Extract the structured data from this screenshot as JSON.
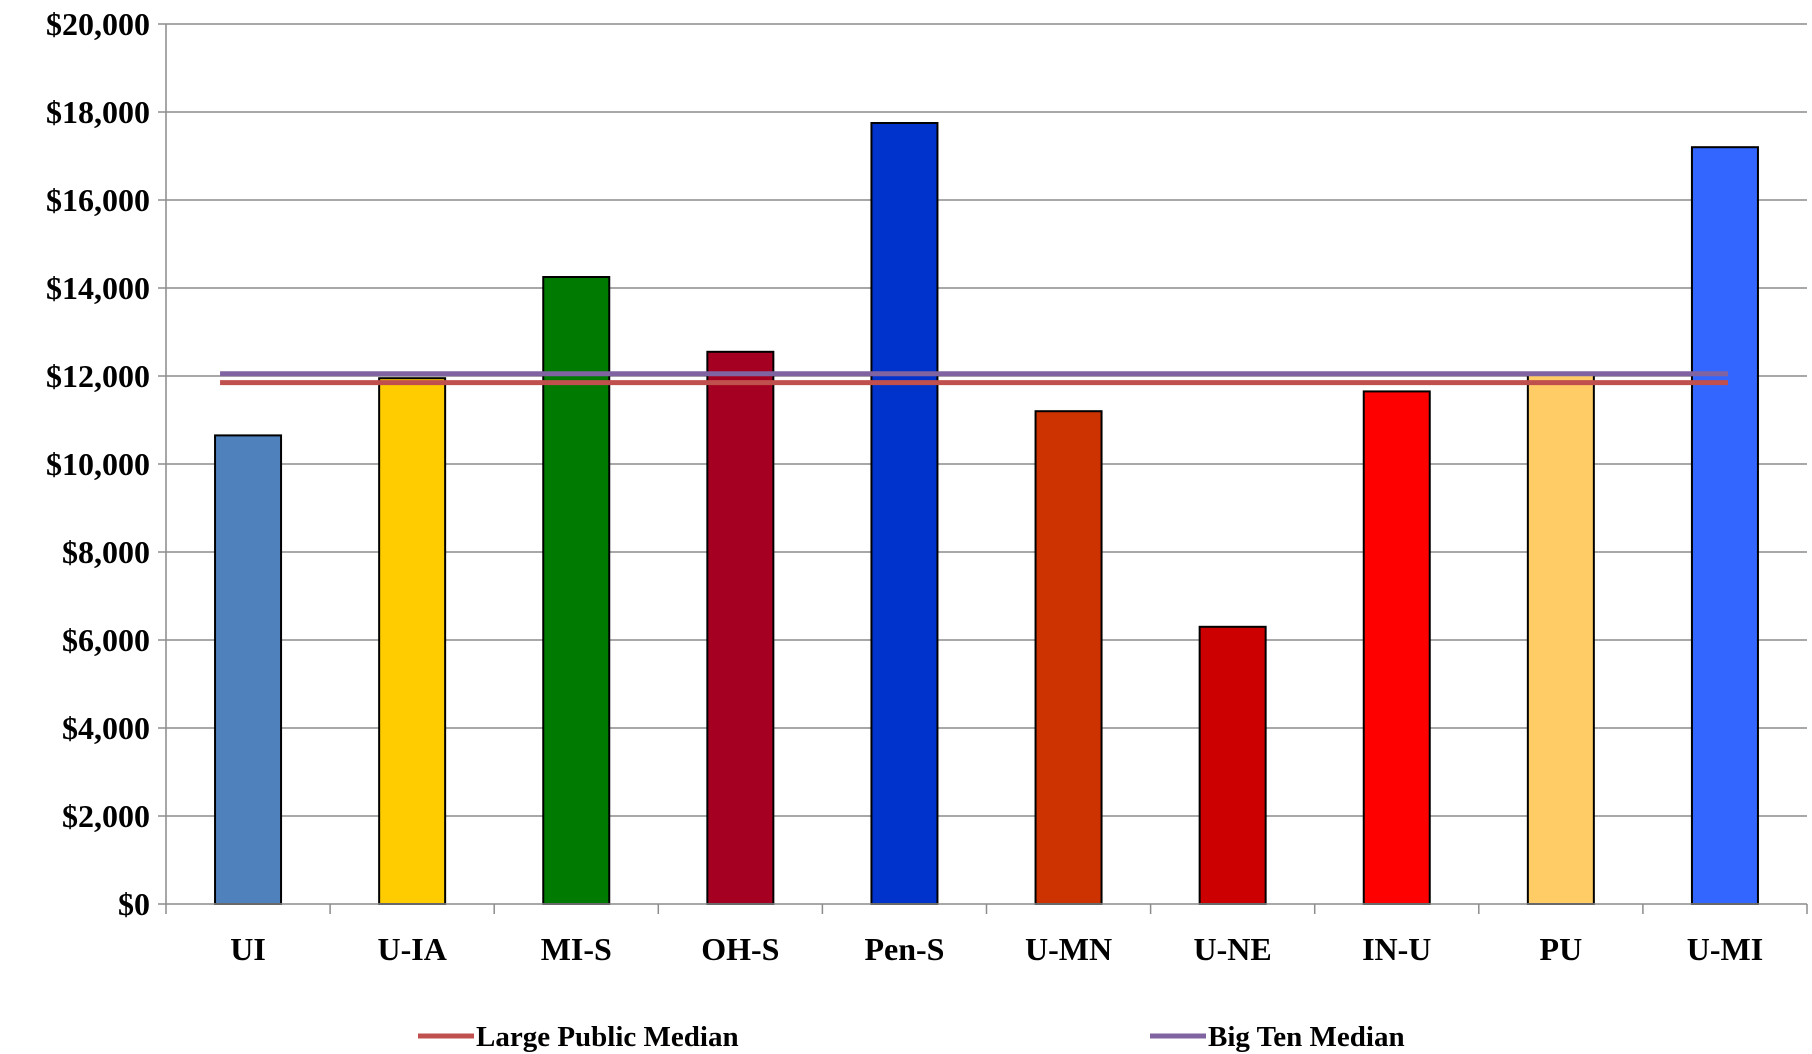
{
  "chart_data": {
    "type": "bar",
    "title": "",
    "xlabel": "",
    "ylabel": "",
    "categories": [
      "UI",
      "U-IA",
      "MI-S",
      "OH-S",
      "Pen-S",
      "U-MN",
      "U-NE",
      "IN-U",
      "PU",
      "U-MI"
    ],
    "values": [
      10650,
      11950,
      14250,
      12550,
      17750,
      11200,
      6300,
      11650,
      12050,
      17200
    ],
    "bar_colors": [
      "#4f81bd",
      "#ffcc00",
      "#007a00",
      "#a50021",
      "#0033cc",
      "#cc3300",
      "#cc0000",
      "#ff0000",
      "#ffcc66",
      "#3366ff"
    ],
    "ylim": [
      0,
      20000
    ],
    "yticks": [
      0,
      2000,
      4000,
      6000,
      8000,
      10000,
      12000,
      14000,
      16000,
      18000,
      20000
    ],
    "ytick_labels": [
      "$0",
      "$2,000",
      "$4,000",
      "$6,000",
      "$8,000",
      "$10,000",
      "$12,000",
      "$14,000",
      "$16,000",
      "$18,000",
      "$20,000"
    ],
    "grid": true,
    "legend_position": "bottom",
    "reference_lines": [
      {
        "name": "Large Public Median",
        "value": 11850,
        "color": "#c0504d"
      },
      {
        "name": "Big Ten Median",
        "value": 12050,
        "color": "#8064a2"
      }
    ]
  }
}
